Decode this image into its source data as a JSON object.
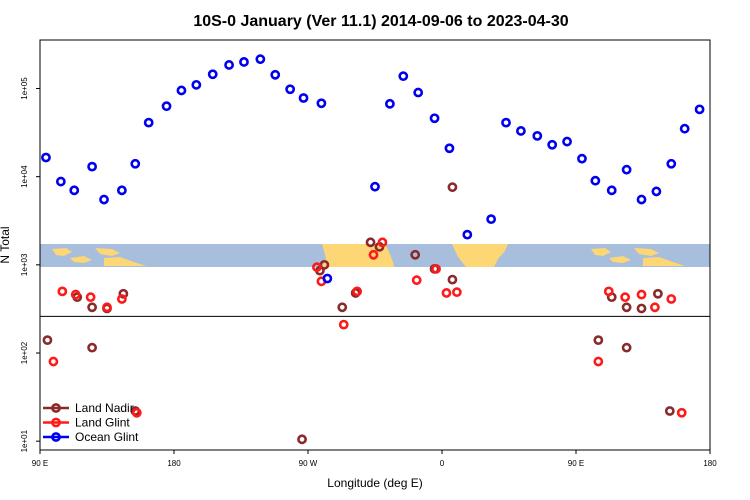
{
  "chart_data": {
    "type": "scatter",
    "title": "10S-0 January (Ver 11.1)   2014-09-06 to 2023-04-30",
    "xlabel": "Longitude (deg E)",
    "ylabel": "N Total",
    "xlim": [
      90,
      540
    ],
    "ylim_log10": [
      0.9,
      5.55
    ],
    "log_scale_y": true,
    "x_ticks": [
      {
        "value": 90,
        "label": "90 E"
      },
      {
        "value": 180,
        "label": "180"
      },
      {
        "value": 270,
        "label": "90 W"
      },
      {
        "value": 360,
        "label": "0"
      },
      {
        "value": 450,
        "label": "90 E"
      },
      {
        "value": 540,
        "label": "180"
      }
    ],
    "y_ticks": [
      {
        "value": 10,
        "label": "1e+01"
      },
      {
        "value": 100,
        "label": "1e+02"
      },
      {
        "value": 1000,
        "label": "1e+03"
      },
      {
        "value": 10000,
        "label": "1e+04"
      },
      {
        "value": 100000,
        "label": "1e+05"
      }
    ],
    "reference_line_y": 260,
    "map_band": {
      "lat_range": "10S-0",
      "ocean_color": "#a7bedd",
      "land_color": "#fdd675"
    },
    "legend_position": "bottom-left",
    "series": [
      {
        "name": "Land Nadir",
        "color": "#8b2a2a",
        "points": [
          {
            "lon": 95,
            "n": 140
          },
          {
            "lon": 115,
            "n": 430
          },
          {
            "lon": 125,
            "n": 330
          },
          {
            "lon": 125,
            "n": 115
          },
          {
            "lon": 135,
            "n": 320
          },
          {
            "lon": 146,
            "n": 470
          },
          {
            "lon": 154,
            "n": 22
          },
          {
            "lon": 266,
            "n": 10.5
          },
          {
            "lon": 278,
            "n": 860
          },
          {
            "lon": 281,
            "n": 1000
          },
          {
            "lon": 293,
            "n": 330
          },
          {
            "lon": 302,
            "n": 480
          },
          {
            "lon": 312,
            "n": 1800
          },
          {
            "lon": 318,
            "n": 1600
          },
          {
            "lon": 342,
            "n": 1300
          },
          {
            "lon": 355,
            "n": 900
          },
          {
            "lon": 367,
            "n": 7600
          },
          {
            "lon": 367,
            "n": 680
          },
          {
            "lon": 465,
            "n": 140
          },
          {
            "lon": 474,
            "n": 430
          },
          {
            "lon": 484,
            "n": 330
          },
          {
            "lon": 484,
            "n": 115
          },
          {
            "lon": 494,
            "n": 320
          },
          {
            "lon": 505,
            "n": 470
          },
          {
            "lon": 513,
            "n": 22
          }
        ]
      },
      {
        "name": "Land Glint",
        "color": "#ff1a1a",
        "points": [
          {
            "lon": 99,
            "n": 80
          },
          {
            "lon": 105,
            "n": 500
          },
          {
            "lon": 114,
            "n": 460
          },
          {
            "lon": 124,
            "n": 430
          },
          {
            "lon": 135,
            "n": 330
          },
          {
            "lon": 145,
            "n": 410
          },
          {
            "lon": 155,
            "n": 21
          },
          {
            "lon": 276,
            "n": 940
          },
          {
            "lon": 279,
            "n": 650
          },
          {
            "lon": 294,
            "n": 210
          },
          {
            "lon": 303,
            "n": 500
          },
          {
            "lon": 314,
            "n": 1300
          },
          {
            "lon": 320,
            "n": 1800
          },
          {
            "lon": 343,
            "n": 670
          },
          {
            "lon": 356,
            "n": 900
          },
          {
            "lon": 363,
            "n": 480
          },
          {
            "lon": 370,
            "n": 490
          },
          {
            "lon": 465,
            "n": 80
          },
          {
            "lon": 472,
            "n": 500
          },
          {
            "lon": 483,
            "n": 430
          },
          {
            "lon": 494,
            "n": 460
          },
          {
            "lon": 503,
            "n": 330
          },
          {
            "lon": 514,
            "n": 410
          },
          {
            "lon": 521,
            "n": 21
          }
        ]
      },
      {
        "name": "Ocean Glint",
        "color": "#0000ee",
        "points": [
          {
            "lon": 94,
            "n": 16500
          },
          {
            "lon": 104,
            "n": 8800
          },
          {
            "lon": 113,
            "n": 7000
          },
          {
            "lon": 125,
            "n": 13000
          },
          {
            "lon": 133,
            "n": 5500
          },
          {
            "lon": 145,
            "n": 7000
          },
          {
            "lon": 154,
            "n": 14000
          },
          {
            "lon": 163,
            "n": 41000
          },
          {
            "lon": 175,
            "n": 63000
          },
          {
            "lon": 185,
            "n": 95000
          },
          {
            "lon": 195,
            "n": 110000
          },
          {
            "lon": 206,
            "n": 145000
          },
          {
            "lon": 217,
            "n": 185000
          },
          {
            "lon": 227,
            "n": 200000
          },
          {
            "lon": 238,
            "n": 215000
          },
          {
            "lon": 248,
            "n": 143000
          },
          {
            "lon": 258,
            "n": 98000
          },
          {
            "lon": 267,
            "n": 78000
          },
          {
            "lon": 279,
            "n": 68000
          },
          {
            "lon": 283,
            "n": 700
          },
          {
            "lon": 315,
            "n": 7700
          },
          {
            "lon": 325,
            "n": 67000
          },
          {
            "lon": 334,
            "n": 138000
          },
          {
            "lon": 344,
            "n": 90000
          },
          {
            "lon": 355,
            "n": 46000
          },
          {
            "lon": 365,
            "n": 21000
          },
          {
            "lon": 377,
            "n": 2200
          },
          {
            "lon": 393,
            "n": 3300
          },
          {
            "lon": 403,
            "n": 41000
          },
          {
            "lon": 413,
            "n": 33000
          },
          {
            "lon": 424,
            "n": 29000
          },
          {
            "lon": 434,
            "n": 23000
          },
          {
            "lon": 444,
            "n": 25000
          },
          {
            "lon": 454,
            "n": 16000
          },
          {
            "lon": 463,
            "n": 9000
          },
          {
            "lon": 474,
            "n": 7000
          },
          {
            "lon": 484,
            "n": 12000
          },
          {
            "lon": 494,
            "n": 5500
          },
          {
            "lon": 504,
            "n": 6800
          },
          {
            "lon": 514,
            "n": 14000
          },
          {
            "lon": 523,
            "n": 35000
          },
          {
            "lon": 533,
            "n": 58000
          }
        ]
      }
    ]
  }
}
